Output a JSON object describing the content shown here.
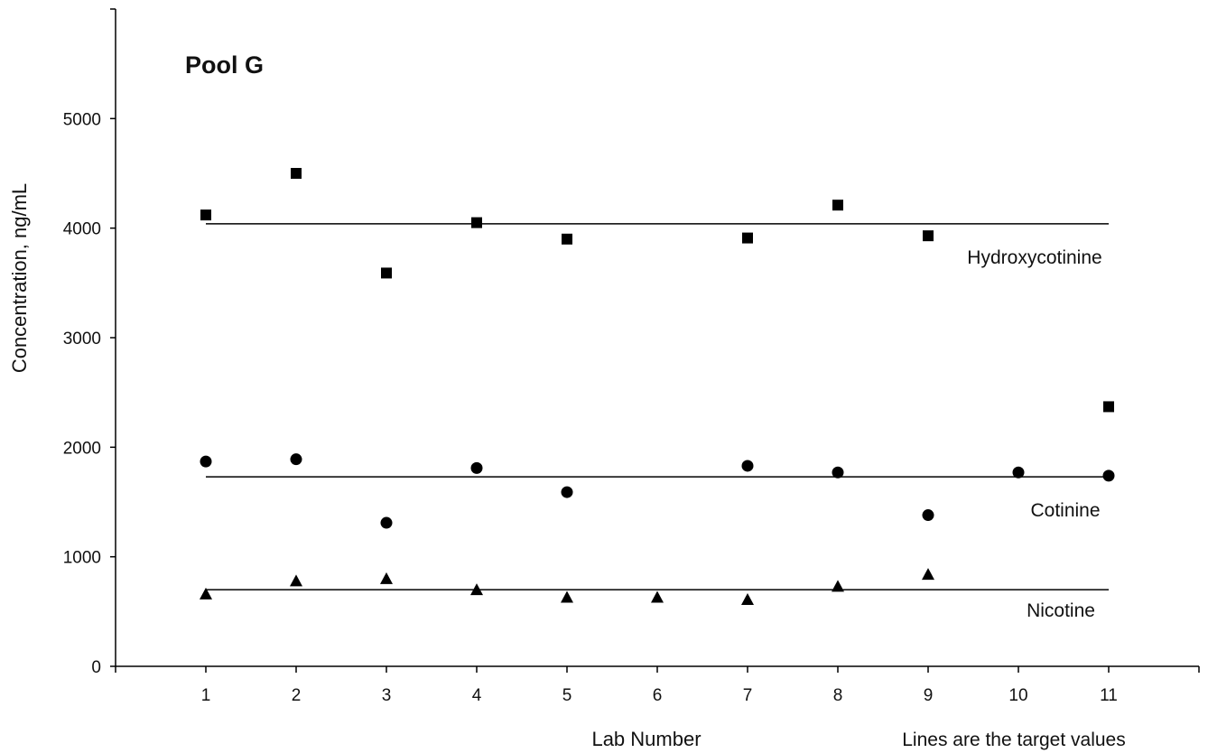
{
  "chart_data": {
    "type": "scatter",
    "title": "Pool G",
    "xlabel": "Lab Number",
    "ylabel": "Concentration, ng/mL",
    "note": "Lines are the target values",
    "xlim": [
      0,
      12
    ],
    "ylim": [
      0,
      6000
    ],
    "x_ticks": [
      1,
      2,
      3,
      4,
      5,
      6,
      7,
      8,
      9,
      10,
      11
    ],
    "y_ticks": [
      0,
      1000,
      2000,
      3000,
      4000,
      5000
    ],
    "grid": false,
    "series": [
      {
        "name": "Hydroxycotinine",
        "marker": "square",
        "target": 4040,
        "points": [
          [
            1,
            4120
          ],
          [
            2,
            4500
          ],
          [
            3,
            3590
          ],
          [
            4,
            4050
          ],
          [
            5,
            3900
          ],
          [
            7,
            3910
          ],
          [
            8,
            4210
          ],
          [
            9,
            3930
          ],
          [
            11,
            2370
          ]
        ]
      },
      {
        "name": "Cotinine",
        "marker": "circle",
        "target": 1730,
        "points": [
          [
            1,
            1870
          ],
          [
            2,
            1890
          ],
          [
            3,
            1310
          ],
          [
            4,
            1810
          ],
          [
            5,
            1590
          ],
          [
            7,
            1830
          ],
          [
            8,
            1770
          ],
          [
            9,
            1380
          ],
          [
            10,
            1770
          ],
          [
            11,
            1740
          ]
        ]
      },
      {
        "name": "Nicotine",
        "marker": "triangle",
        "target": 700,
        "points": [
          [
            1,
            660
          ],
          [
            2,
            780
          ],
          [
            3,
            800
          ],
          [
            4,
            700
          ],
          [
            5,
            630
          ],
          [
            6,
            630
          ],
          [
            7,
            610
          ],
          [
            8,
            730
          ],
          [
            9,
            840
          ]
        ]
      }
    ]
  }
}
